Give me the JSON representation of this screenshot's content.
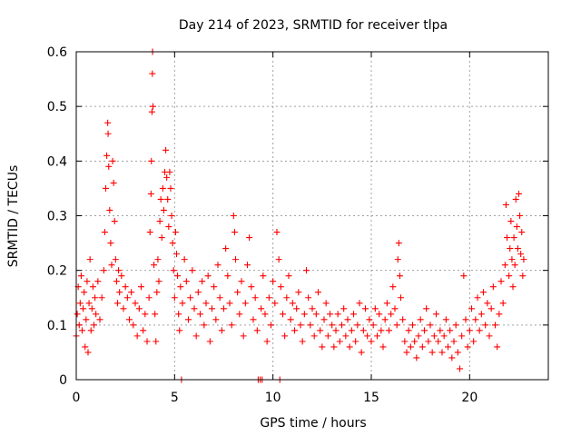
{
  "chart_data": {
    "type": "scatter",
    "title": "Day 214 of 2023, SRMTID for receiver tlpa",
    "xlabel": "GPS time / hours",
    "ylabel": "SRMTID / TECUs",
    "xlim": [
      0,
      24
    ],
    "ylim": [
      0,
      0.6
    ],
    "x_ticks": [
      0,
      5,
      10,
      15,
      20
    ],
    "x_tick_labels": [
      "0",
      "5",
      "10",
      "15",
      "20"
    ],
    "y_ticks": [
      0,
      0.1,
      0.2,
      0.3,
      0.4,
      0.5,
      0.6
    ],
    "y_tick_labels": [
      "0",
      "0.1",
      "0.2",
      "0.3",
      "0.4",
      "0.5",
      "0.6"
    ],
    "grid": true,
    "marker": "plus",
    "color": "#ff0000",
    "series": [
      {
        "name": "SRMTID",
        "points": [
          [
            0.0,
            0.08
          ],
          [
            0.05,
            0.12
          ],
          [
            0.1,
            0.17
          ],
          [
            0.15,
            0.1
          ],
          [
            0.2,
            0.14
          ],
          [
            0.25,
            0.19
          ],
          [
            0.3,
            0.09
          ],
          [
            0.35,
            0.13
          ],
          [
            0.4,
            0.16
          ],
          [
            0.45,
            0.06
          ],
          [
            0.5,
            0.11
          ],
          [
            0.55,
            0.18
          ],
          [
            0.6,
            0.05
          ],
          [
            0.65,
            0.14
          ],
          [
            0.7,
            0.22
          ],
          [
            0.75,
            0.09
          ],
          [
            0.8,
            0.13
          ],
          [
            0.85,
            0.17
          ],
          [
            0.9,
            0.1
          ],
          [
            0.95,
            0.15
          ],
          [
            1.0,
            0.12
          ],
          [
            1.1,
            0.18
          ],
          [
            1.2,
            0.11
          ],
          [
            1.3,
            0.15
          ],
          [
            1.4,
            0.2
          ],
          [
            1.45,
            0.27
          ],
          [
            1.5,
            0.35
          ],
          [
            1.55,
            0.41
          ],
          [
            1.6,
            0.47
          ],
          [
            1.62,
            0.45
          ],
          [
            1.65,
            0.39
          ],
          [
            1.7,
            0.31
          ],
          [
            1.75,
            0.25
          ],
          [
            1.8,
            0.21
          ],
          [
            1.85,
            0.4
          ],
          [
            1.9,
            0.36
          ],
          [
            1.95,
            0.29
          ],
          [
            2.0,
            0.22
          ],
          [
            2.05,
            0.18
          ],
          [
            2.1,
            0.14
          ],
          [
            2.15,
            0.2
          ],
          [
            2.2,
            0.16
          ],
          [
            2.3,
            0.19
          ],
          [
            2.4,
            0.13
          ],
          [
            2.5,
            0.17
          ],
          [
            2.6,
            0.15
          ],
          [
            2.7,
            0.11
          ],
          [
            2.8,
            0.16
          ],
          [
            2.9,
            0.1
          ],
          [
            3.0,
            0.14
          ],
          [
            3.1,
            0.08
          ],
          [
            3.2,
            0.13
          ],
          [
            3.3,
            0.17
          ],
          [
            3.4,
            0.09
          ],
          [
            3.5,
            0.12
          ],
          [
            3.6,
            0.07
          ],
          [
            3.7,
            0.15
          ],
          [
            3.75,
            0.27
          ],
          [
            3.8,
            0.34
          ],
          [
            3.82,
            0.4
          ],
          [
            3.85,
            0.49
          ],
          [
            3.87,
            0.56
          ],
          [
            3.88,
            0.6
          ],
          [
            3.9,
            0.5
          ],
          [
            3.95,
            0.21
          ],
          [
            4.0,
            0.12
          ],
          [
            4.05,
            0.07
          ],
          [
            4.1,
            0.16
          ],
          [
            4.15,
            0.22
          ],
          [
            4.2,
            0.18
          ],
          [
            4.25,
            0.29
          ],
          [
            4.3,
            0.33
          ],
          [
            4.35,
            0.26
          ],
          [
            4.4,
            0.35
          ],
          [
            4.45,
            0.31
          ],
          [
            4.5,
            0.38
          ],
          [
            4.55,
            0.42
          ],
          [
            4.6,
            0.37
          ],
          [
            4.65,
            0.33
          ],
          [
            4.7,
            0.28
          ],
          [
            4.75,
            0.38
          ],
          [
            4.8,
            0.35
          ],
          [
            4.85,
            0.3
          ],
          [
            4.9,
            0.25
          ],
          [
            4.95,
            0.2
          ],
          [
            5.0,
            0.15
          ],
          [
            5.05,
            0.27
          ],
          [
            5.1,
            0.23
          ],
          [
            5.15,
            0.19
          ],
          [
            5.2,
            0.12
          ],
          [
            5.25,
            0.09
          ],
          [
            5.3,
            0.17
          ],
          [
            5.35,
            0.0
          ],
          [
            5.4,
            0.14
          ],
          [
            5.5,
            0.22
          ],
          [
            5.6,
            0.18
          ],
          [
            5.7,
            0.11
          ],
          [
            5.8,
            0.15
          ],
          [
            5.9,
            0.2
          ],
          [
            6.0,
            0.13
          ],
          [
            6.1,
            0.08
          ],
          [
            6.2,
            0.16
          ],
          [
            6.3,
            0.12
          ],
          [
            6.4,
            0.18
          ],
          [
            6.5,
            0.1
          ],
          [
            6.6,
            0.14
          ],
          [
            6.7,
            0.19
          ],
          [
            6.8,
            0.07
          ],
          [
            6.9,
            0.13
          ],
          [
            7.0,
            0.17
          ],
          [
            7.1,
            0.11
          ],
          [
            7.2,
            0.21
          ],
          [
            7.3,
            0.15
          ],
          [
            7.4,
            0.09
          ],
          [
            7.5,
            0.13
          ],
          [
            7.6,
            0.24
          ],
          [
            7.7,
            0.19
          ],
          [
            7.8,
            0.14
          ],
          [
            7.9,
            0.1
          ],
          [
            8.0,
            0.3
          ],
          [
            8.05,
            0.27
          ],
          [
            8.1,
            0.22
          ],
          [
            8.2,
            0.16
          ],
          [
            8.3,
            0.12
          ],
          [
            8.4,
            0.18
          ],
          [
            8.5,
            0.08
          ],
          [
            8.6,
            0.14
          ],
          [
            8.7,
            0.21
          ],
          [
            8.8,
            0.26
          ],
          [
            8.9,
            0.17
          ],
          [
            9.0,
            0.11
          ],
          [
            9.1,
            0.15
          ],
          [
            9.2,
            0.09
          ],
          [
            9.25,
            0.0
          ],
          [
            9.35,
            0.0
          ],
          [
            9.4,
            0.13
          ],
          [
            9.45,
            0.0
          ],
          [
            9.5,
            0.19
          ],
          [
            9.6,
            0.12
          ],
          [
            9.7,
            0.07
          ],
          [
            9.8,
            0.15
          ],
          [
            9.9,
            0.1
          ],
          [
            10.0,
            0.18
          ],
          [
            10.1,
            0.14
          ],
          [
            10.2,
            0.27
          ],
          [
            10.3,
            0.22
          ],
          [
            10.35,
            0.0
          ],
          [
            10.4,
            0.17
          ],
          [
            10.5,
            0.12
          ],
          [
            10.6,
            0.08
          ],
          [
            10.7,
            0.15
          ],
          [
            10.8,
            0.19
          ],
          [
            10.9,
            0.11
          ],
          [
            11.0,
            0.14
          ],
          [
            11.1,
            0.09
          ],
          [
            11.2,
            0.13
          ],
          [
            11.3,
            0.16
          ],
          [
            11.4,
            0.1
          ],
          [
            11.5,
            0.07
          ],
          [
            11.6,
            0.12
          ],
          [
            11.7,
            0.2
          ],
          [
            11.8,
            0.15
          ],
          [
            11.9,
            0.1
          ],
          [
            12.0,
            0.13
          ],
          [
            12.1,
            0.08
          ],
          [
            12.2,
            0.12
          ],
          [
            12.3,
            0.16
          ],
          [
            12.4,
            0.09
          ],
          [
            12.5,
            0.06
          ],
          [
            12.6,
            0.11
          ],
          [
            12.7,
            0.14
          ],
          [
            12.8,
            0.08
          ],
          [
            12.9,
            0.12
          ],
          [
            13.0,
            0.1
          ],
          [
            13.1,
            0.06
          ],
          [
            13.2,
            0.09
          ],
          [
            13.3,
            0.12
          ],
          [
            13.4,
            0.07
          ],
          [
            13.5,
            0.1
          ],
          [
            13.6,
            0.13
          ],
          [
            13.7,
            0.08
          ],
          [
            13.8,
            0.11
          ],
          [
            13.9,
            0.06
          ],
          [
            14.0,
            0.09
          ],
          [
            14.1,
            0.12
          ],
          [
            14.2,
            0.07
          ],
          [
            14.3,
            0.1
          ],
          [
            14.4,
            0.14
          ],
          [
            14.5,
            0.05
          ],
          [
            14.6,
            0.09
          ],
          [
            14.7,
            0.13
          ],
          [
            14.8,
            0.08
          ],
          [
            14.9,
            0.11
          ],
          [
            15.0,
            0.07
          ],
          [
            15.1,
            0.1
          ],
          [
            15.2,
            0.13
          ],
          [
            15.3,
            0.08
          ],
          [
            15.4,
            0.12
          ],
          [
            15.5,
            0.09
          ],
          [
            15.6,
            0.06
          ],
          [
            15.7,
            0.11
          ],
          [
            15.8,
            0.14
          ],
          [
            15.9,
            0.09
          ],
          [
            16.0,
            0.12
          ],
          [
            16.1,
            0.17
          ],
          [
            16.2,
            0.13
          ],
          [
            16.3,
            0.1
          ],
          [
            16.35,
            0.22
          ],
          [
            16.4,
            0.25
          ],
          [
            16.45,
            0.19
          ],
          [
            16.5,
            0.15
          ],
          [
            16.6,
            0.11
          ],
          [
            16.7,
            0.07
          ],
          [
            16.8,
            0.05
          ],
          [
            16.9,
            0.09
          ],
          [
            17.0,
            0.06
          ],
          [
            17.1,
            0.1
          ],
          [
            17.2,
            0.07
          ],
          [
            17.3,
            0.04
          ],
          [
            17.4,
            0.08
          ],
          [
            17.5,
            0.11
          ],
          [
            17.6,
            0.06
          ],
          [
            17.7,
            0.09
          ],
          [
            17.8,
            0.13
          ],
          [
            17.9,
            0.07
          ],
          [
            18.0,
            0.1
          ],
          [
            18.1,
            0.05
          ],
          [
            18.2,
            0.08
          ],
          [
            18.3,
            0.12
          ],
          [
            18.4,
            0.07
          ],
          [
            18.5,
            0.09
          ],
          [
            18.6,
            0.05
          ],
          [
            18.7,
            0.08
          ],
          [
            18.8,
            0.11
          ],
          [
            18.9,
            0.06
          ],
          [
            19.0,
            0.09
          ],
          [
            19.1,
            0.04
          ],
          [
            19.2,
            0.07
          ],
          [
            19.3,
            0.1
          ],
          [
            19.4,
            0.05
          ],
          [
            19.5,
            0.02
          ],
          [
            19.6,
            0.08
          ],
          [
            19.7,
            0.19
          ],
          [
            19.8,
            0.11
          ],
          [
            19.9,
            0.06
          ],
          [
            20.0,
            0.09
          ],
          [
            20.1,
            0.13
          ],
          [
            20.2,
            0.07
          ],
          [
            20.3,
            0.11
          ],
          [
            20.4,
            0.15
          ],
          [
            20.5,
            0.09
          ],
          [
            20.6,
            0.12
          ],
          [
            20.7,
            0.16
          ],
          [
            20.8,
            0.1
          ],
          [
            20.9,
            0.14
          ],
          [
            21.0,
            0.08
          ],
          [
            21.1,
            0.13
          ],
          [
            21.2,
            0.17
          ],
          [
            21.3,
            0.1
          ],
          [
            21.4,
            0.06
          ],
          [
            21.5,
            0.12
          ],
          [
            21.6,
            0.18
          ],
          [
            21.7,
            0.14
          ],
          [
            21.8,
            0.21
          ],
          [
            21.85,
            0.32
          ],
          [
            21.9,
            0.26
          ],
          [
            22.0,
            0.19
          ],
          [
            22.05,
            0.24
          ],
          [
            22.1,
            0.29
          ],
          [
            22.15,
            0.22
          ],
          [
            22.2,
            0.17
          ],
          [
            22.25,
            0.26
          ],
          [
            22.3,
            0.21
          ],
          [
            22.35,
            0.33
          ],
          [
            22.4,
            0.28
          ],
          [
            22.45,
            0.24
          ],
          [
            22.5,
            0.34
          ],
          [
            22.55,
            0.3
          ],
          [
            22.6,
            0.23
          ],
          [
            22.65,
            0.27
          ],
          [
            22.7,
            0.19
          ],
          [
            22.75,
            0.22
          ]
        ]
      }
    ]
  }
}
